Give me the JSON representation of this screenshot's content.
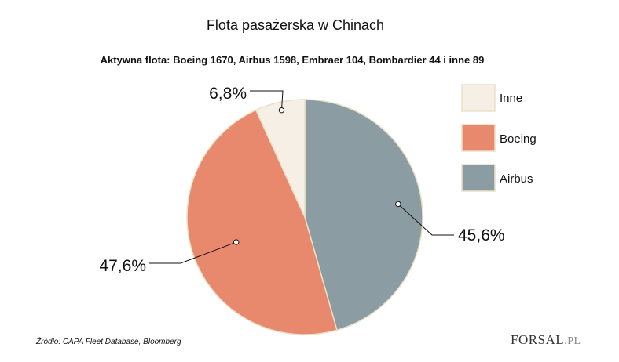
{
  "title": "Flota pasażerska w Chinach",
  "subtitle": "Aktywna flota: Boeing 1670, Airbus 1598, Embraer 104, Bombardier 44 i inne 89",
  "source": "Źródło: CAPA Fleet Database, Bloomberg",
  "logo": {
    "main": "FORSAL",
    "suffix": ".PL"
  },
  "chart_data": {
    "type": "pie",
    "title": "Flota pasażerska w Chinach",
    "slices": [
      {
        "name": "Airbus",
        "value": 45.6,
        "label": "45,6%",
        "color": "#8c9ca3"
      },
      {
        "name": "Boeing",
        "value": 47.6,
        "label": "47,6%",
        "color": "#e8896d"
      },
      {
        "name": "Inne",
        "value": 6.8,
        "label": "6,8%",
        "color": "#f6efe6"
      }
    ],
    "legend_order": [
      "Inne",
      "Boeing",
      "Airbus"
    ],
    "legend_position": "right",
    "slice_border": "#e8e0c8"
  }
}
